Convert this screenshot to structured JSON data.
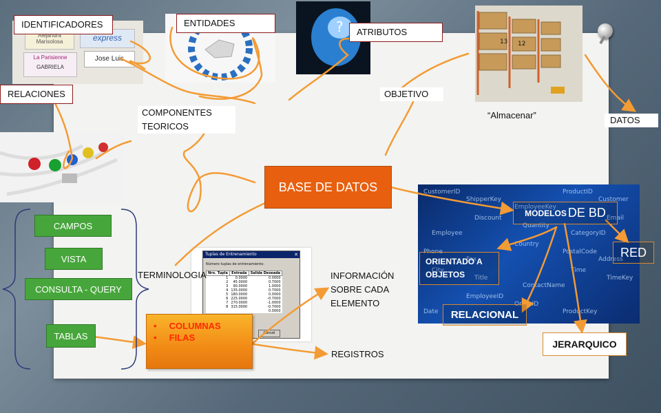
{
  "title": "BASE DE DATOS",
  "labels": {
    "identificadores": "IDENTIFICADORES",
    "entidades": "ENTIDADES",
    "atributos": "ATRIBUTOS",
    "relaciones": "RELACIONES",
    "componentes": "COMPONENTES TEORICOS",
    "objetivo": "OBJETIVO",
    "almacenar": "“Almacenar”",
    "datos": "DATOS",
    "terminologia": "TERMINOLOGIA",
    "informacion": "INFORMACIÓN SOBRE CADA ELEMENTO",
    "registros": "REGISTROS"
  },
  "terminology_items": [
    "CAMPOS",
    "VISTA",
    "CONSULTA - QUERY",
    "TABLAS"
  ],
  "bullets": [
    "COLUMNAS",
    "FILAS"
  ],
  "models": {
    "title": "MODELOS DE BD",
    "title_small": "MODELOS",
    "title_big": "DE BD",
    "red": "RED",
    "orientado": "ORIENTADO A OBJETOS",
    "relacional": "RELACIONAL",
    "jerarquico": "JERARQUICO"
  },
  "name_tags": [
    "Alejandra Marisolosa",
    "express",
    "La Parisienne",
    "Jose Luis",
    "GABRIELA"
  ],
  "table_window": {
    "title": "Tuplas de Entrenamiento",
    "field_label": "Número tuplas de entrenamiento:",
    "headers": [
      "Nro. Tupla",
      "Entrada",
      "Salida Deseada"
    ],
    "rows": [
      [
        "1",
        "0.0000",
        "0.0000"
      ],
      [
        "2",
        "45.0000",
        "0.7000"
      ],
      [
        "3",
        "90.0000",
        "1.0000"
      ],
      [
        "4",
        "135.0000",
        "0.7000"
      ],
      [
        "5",
        "180.0000",
        "0.0000"
      ],
      [
        "6",
        "225.0000",
        "-0.7000"
      ],
      [
        "7",
        "270.0000",
        "-1.0000"
      ],
      [
        "8",
        "315.0000",
        "-0.7000"
      ]
    ],
    "extra_value": "0.0000",
    "cancel": "Cancel"
  },
  "shelf_numbers": [
    "13",
    "12"
  ],
  "db_schema_words": [
    "CustomerID",
    "ShipperKey",
    "EmployeeKey",
    "ProductID",
    "Customer",
    "Employee",
    "Discount",
    "Quantity",
    "CategoryID",
    "Email",
    "Phone",
    "Fax",
    "Country",
    "PostalCode",
    "Address",
    "City",
    "Title",
    "ContactName",
    "Time",
    "TimeKey",
    "Date",
    "EmployeeID",
    "OrderID",
    "ProductKey"
  ],
  "colors": {
    "accent_orange": "#e8600f",
    "arrow_orange": "#f39b34",
    "green": "#47a63b",
    "dark_red_border": "#8b1a1a",
    "bullet_red": "#ff2a00"
  }
}
